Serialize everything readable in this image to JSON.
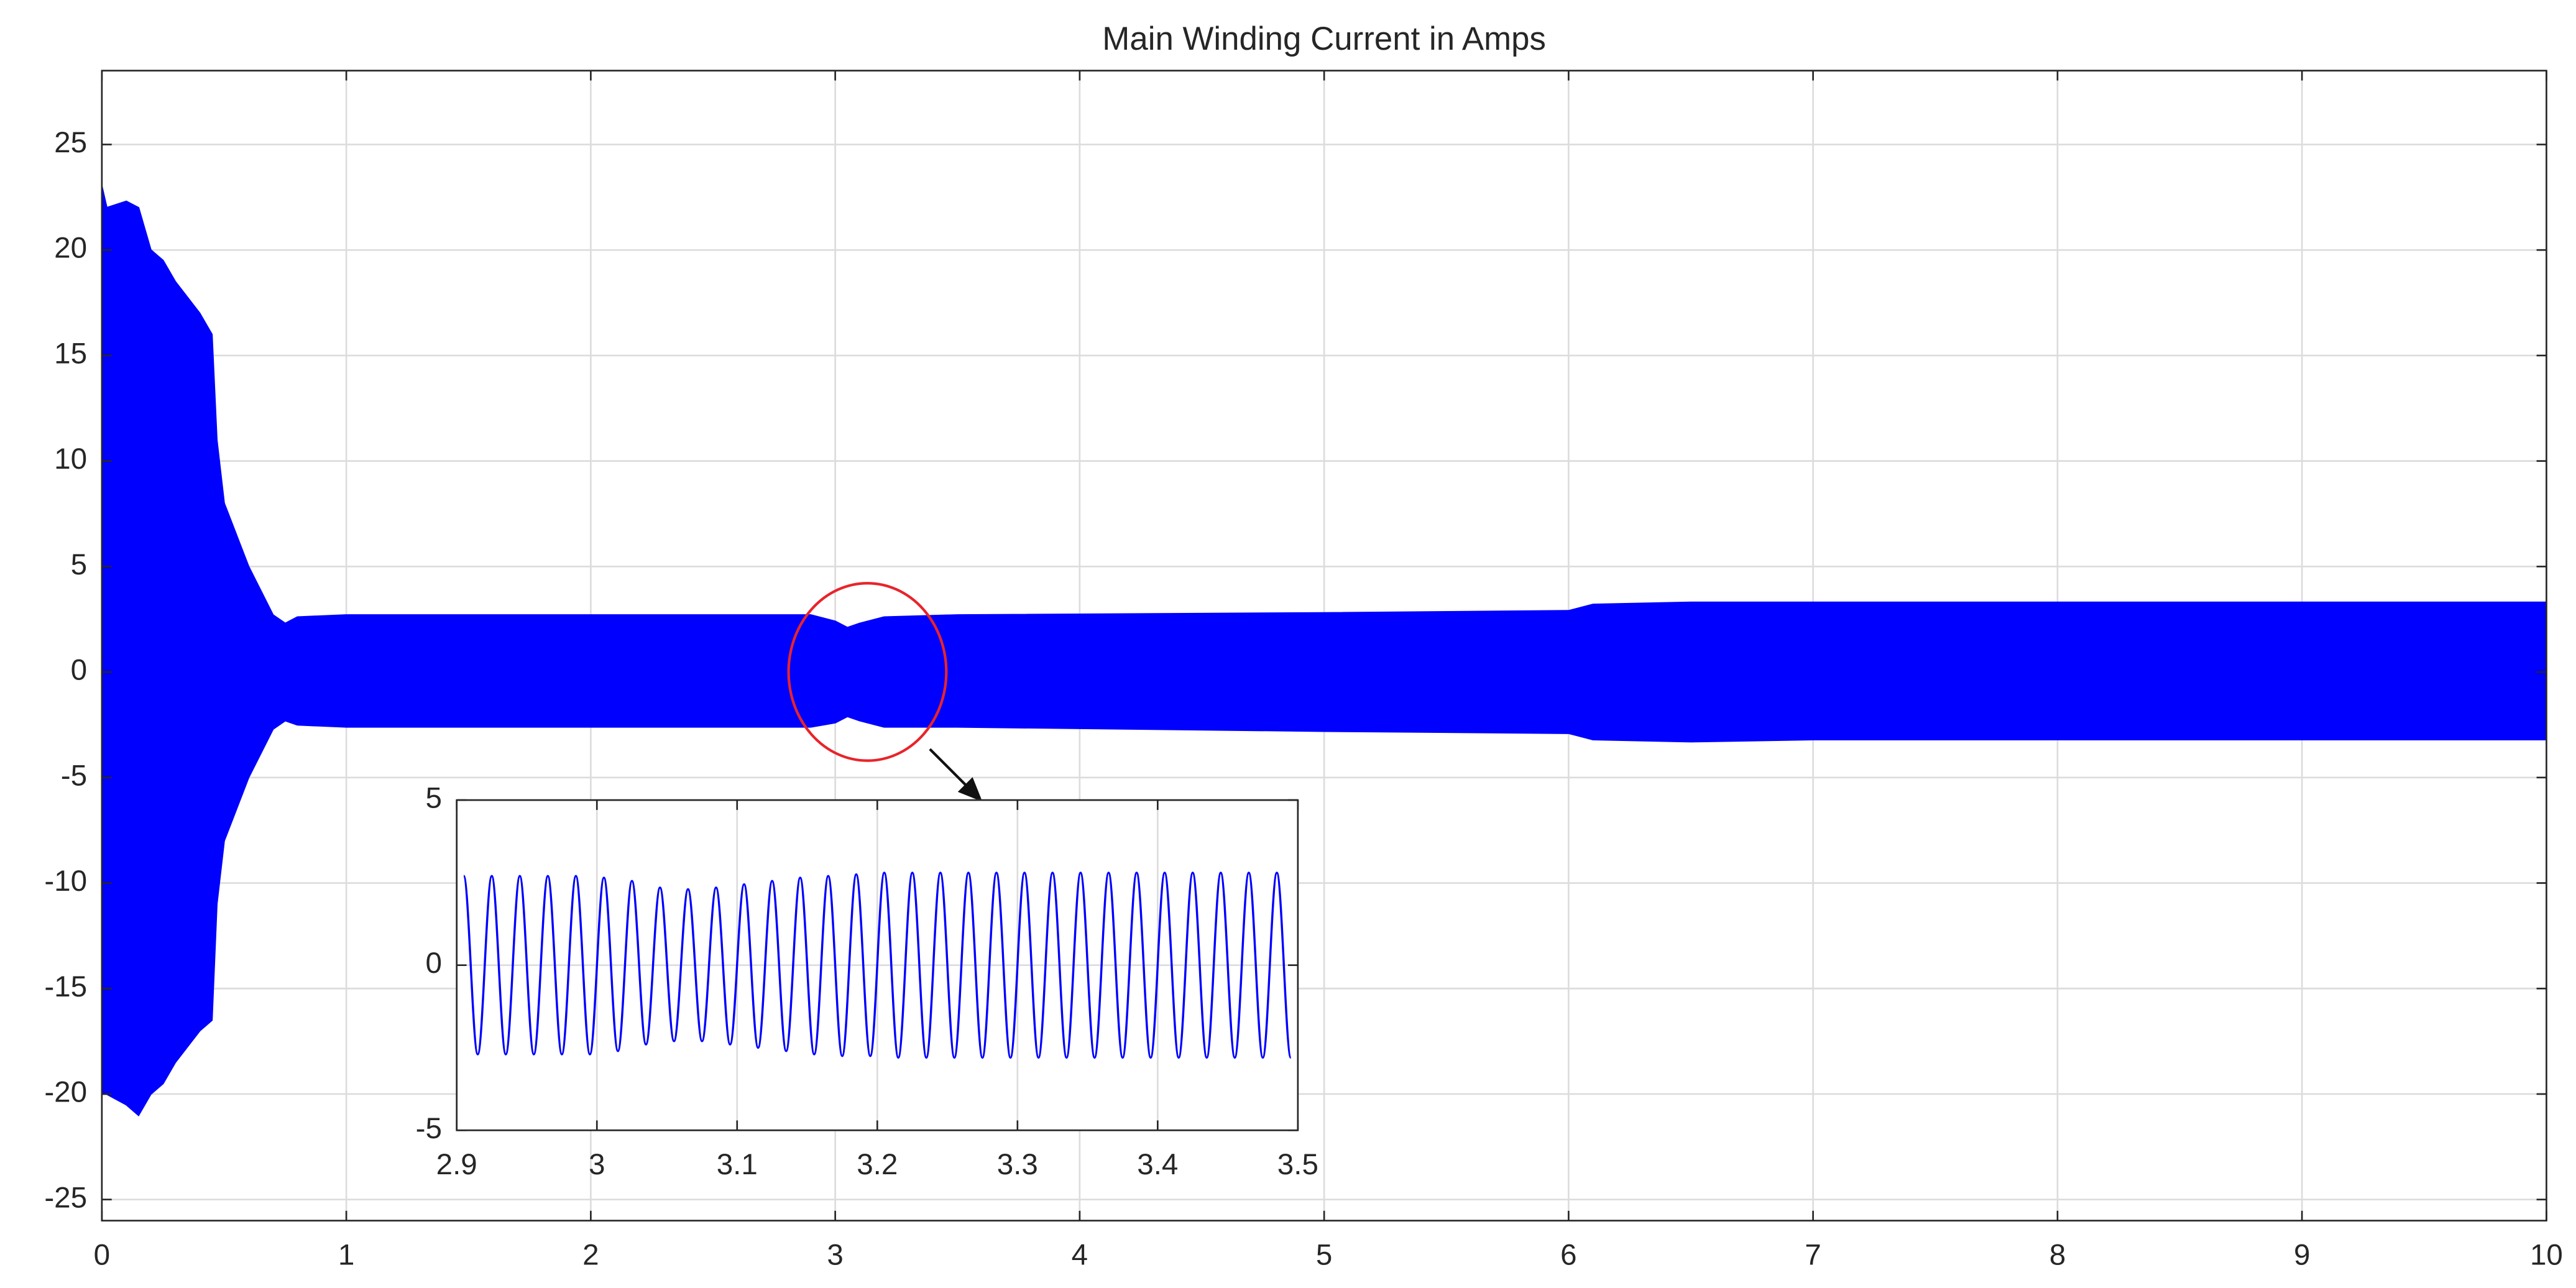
{
  "chart_data": [
    {
      "type": "area",
      "title": "Main Winding Current in Amps",
      "x": [
        0,
        0.02,
        0.1,
        0.15,
        0.2,
        0.25,
        0.3,
        0.4,
        0.45,
        0.47,
        0.5,
        0.6,
        0.7,
        0.75,
        0.8,
        1,
        2,
        2.9,
        3.0,
        3.05,
        3.1,
        3.2,
        3.5,
        5,
        6,
        6.1,
        6.5,
        7,
        8,
        9,
        10
      ],
      "series": [
        {
          "color": "#0000ff",
          "values": [
            23,
            22,
            22.3,
            22,
            20,
            19.5,
            18.5,
            17,
            16,
            11,
            8,
            5,
            2.7,
            2.3,
            2.6,
            2.7,
            2.7,
            2.7,
            2.4,
            2.1,
            2.3,
            2.6,
            2.7,
            2.8,
            2.9,
            3.2,
            3.3,
            3.3,
            3.3,
            3.3,
            3.3
          ]
        },
        {
          "color": "#0000ff",
          "values": [
            -20,
            -20,
            -20.5,
            -21,
            -20,
            -19.5,
            -18.5,
            -17,
            -16.5,
            -11,
            -8,
            -5,
            -2.7,
            -2.3,
            -2.5,
            -2.6,
            -2.6,
            -2.6,
            -2.4,
            -2.1,
            -2.3,
            -2.6,
            -2.6,
            -2.8,
            -2.9,
            -3.2,
            -3.3,
            -3.2,
            -3.2,
            -3.2,
            -3.2
          ]
        }
      ],
      "xlim": [
        0,
        10
      ],
      "xticks": [
        0,
        1,
        2,
        3,
        4,
        5,
        6,
        7,
        8,
        9,
        10
      ],
      "ylim": [
        -26,
        28.5
      ],
      "yticks": [
        -25,
        -20,
        -15,
        -10,
        -5,
        0,
        5,
        10,
        15,
        20,
        25
      ],
      "grid": true
    },
    {
      "type": "line",
      "x": [
        2.905,
        2.915,
        2.925,
        2.935,
        2.945,
        2.955,
        2.965,
        2.975,
        2.985,
        2.995,
        3.005,
        3.015,
        3.025,
        3.035,
        3.045,
        3.055,
        3.065,
        3.075,
        3.085,
        3.095,
        3.105,
        3.115,
        3.125,
        3.135,
        3.145,
        3.155,
        3.165,
        3.175,
        3.185,
        3.195,
        3.205,
        3.215,
        3.225,
        3.235,
        3.245,
        3.255,
        3.265,
        3.275,
        3.285,
        3.295,
        3.305,
        3.315,
        3.325,
        3.335,
        3.345,
        3.355,
        3.365,
        3.375,
        3.385,
        3.395,
        3.405,
        3.415,
        3.425,
        3.435,
        3.445,
        3.455,
        3.465,
        3.475,
        3.485,
        3.495
      ],
      "series": [
        {
          "color": "#0000ff",
          "values": [
            2.7,
            -2.7,
            2.7,
            -2.7,
            2.7,
            -2.7,
            2.7,
            -2.7,
            2.7,
            -2.7,
            2.65,
            -2.6,
            2.55,
            -2.4,
            2.35,
            -2.3,
            2.3,
            -2.3,
            2.35,
            -2.4,
            2.45,
            -2.5,
            2.55,
            -2.6,
            2.65,
            -2.7,
            2.7,
            -2.75,
            2.75,
            -2.75,
            2.8,
            -2.8,
            2.8,
            -2.8,
            2.8,
            -2.8,
            2.8,
            -2.8,
            2.8,
            -2.8,
            2.8,
            -2.8,
            2.8,
            -2.8,
            2.8,
            -2.8,
            2.8,
            -2.8,
            2.8,
            -2.8,
            2.8,
            -2.8,
            2.8,
            -2.8,
            2.8,
            -2.8,
            2.8,
            -2.8,
            2.8,
            -2.8
          ]
        }
      ],
      "xlim": [
        2.9,
        3.5
      ],
      "xticks": [
        2.9,
        3,
        3.1,
        3.2,
        3.3,
        3.4,
        3.5
      ],
      "ylim": [
        -5,
        5
      ],
      "yticks": [
        -5,
        0,
        5
      ],
      "grid": true
    }
  ]
}
